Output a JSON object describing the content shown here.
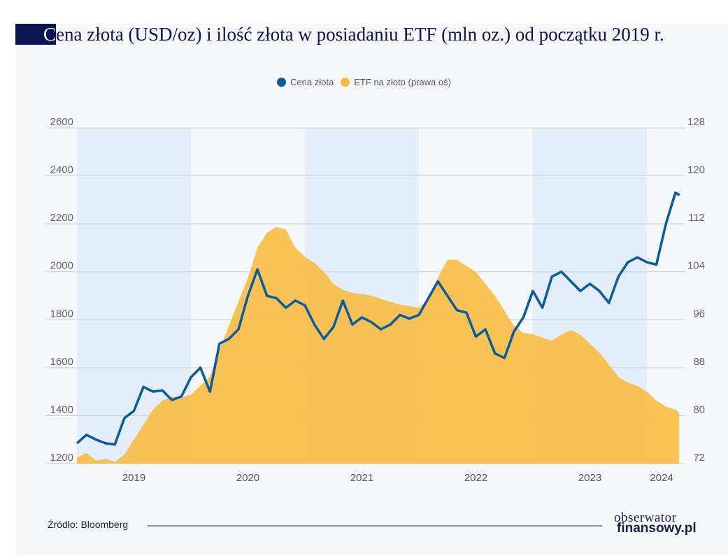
{
  "title_first_letter": "C",
  "title_rest": "ena złota (USD/oz) i ilość złota w posiadaniu ETF (mln oz.) od początku 2019 r.",
  "source": "Źródło: Bloomberg",
  "logo": {
    "line1": "obserwator",
    "line2": "finansowy.pl"
  },
  "colors": {
    "gold_price": "#0b5a9c",
    "etf": "#f8bb45",
    "band": "#e4eef8",
    "background": "#f5f7fa",
    "title_box": "#0d1452"
  },
  "chart_data": {
    "type": "line+area",
    "title": "Cena złota (USD/oz) i ilość złota w posiadaniu ETF (mln oz.) od początku 2019 r.",
    "legend": {
      "placement": "top-center",
      "entries": [
        "Cena złota",
        "ETF na złoto (prawa oś)"
      ]
    },
    "x_start": "2019-01",
    "x_frequency": "monthly",
    "x_ticks": [
      "2019",
      "2020",
      "2021",
      "2022",
      "2023",
      "2024"
    ],
    "y_left": {
      "range": [
        1200,
        2600
      ],
      "ticks": [
        "1200",
        "1400",
        "1600",
        "1800",
        "2000",
        "2200",
        "2400",
        "2600"
      ]
    },
    "y_right": {
      "range": [
        72,
        128
      ],
      "ticks": [
        "72",
        "80",
        "88",
        "96",
        "104",
        "112",
        "120",
        "128"
      ]
    },
    "grid": true,
    "alternating_year_bands": true,
    "series": [
      {
        "name": "Cena złota",
        "axis": "left",
        "type": "line",
        "values": [
          1285,
          1320,
          1300,
          1285,
          1280,
          1390,
          1420,
          1520,
          1500,
          1505,
          1465,
          1480,
          1560,
          1600,
          1500,
          1700,
          1720,
          1760,
          1900,
          2010,
          1900,
          1890,
          1850,
          1880,
          1860,
          1780,
          1720,
          1770,
          1880,
          1780,
          1810,
          1790,
          1760,
          1780,
          1820,
          1805,
          1820,
          1890,
          1960,
          1900,
          1840,
          1830,
          1730,
          1760,
          1660,
          1640,
          1750,
          1810,
          1920,
          1850,
          1980,
          2000,
          1960,
          1920,
          1950,
          1920,
          1870,
          1980,
          2040,
          2060,
          2040,
          2030,
          2200,
          2330
        ]
      },
      {
        "name": "ETF na złoto (prawa oś)",
        "axis": "right",
        "type": "area",
        "values": [
          73.0,
          73.8,
          72.5,
          72.8,
          72.3,
          73.5,
          76,
          78.5,
          81,
          82.5,
          83.2,
          83,
          83.5,
          85,
          86.5,
          91,
          95,
          99,
          103,
          108,
          110.5,
          111.5,
          111,
          108,
          106.5,
          105.5,
          104,
          102,
          101,
          100.5,
          100.3,
          100,
          99.5,
          99,
          98.5,
          98.3,
          98,
          99.5,
          103,
          106,
          106,
          105,
          104,
          102,
          100,
          97.5,
          95,
          93.8,
          93.6,
          93,
          92.5,
          93.5,
          94.3,
          93.5,
          92,
          90.5,
          88.5,
          86.5,
          85.5,
          85,
          84,
          82.5,
          81.5,
          81
        ]
      }
    ]
  }
}
